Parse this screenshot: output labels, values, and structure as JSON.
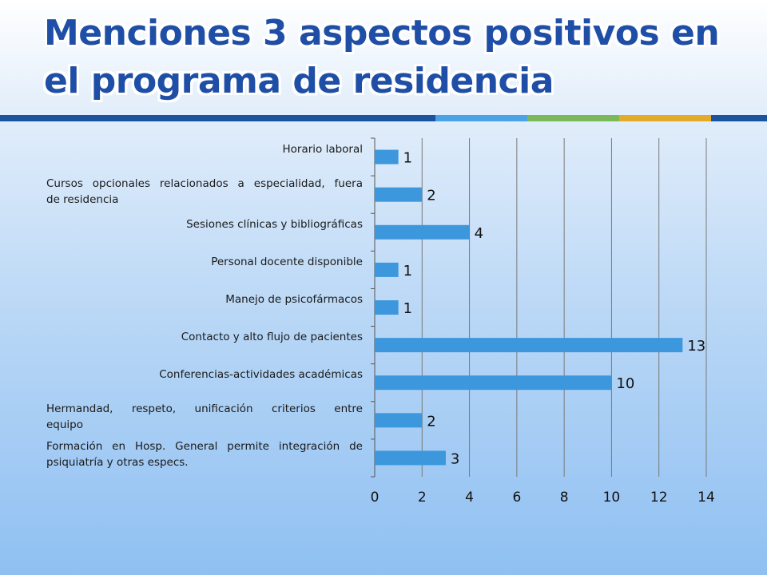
{
  "title": "Menciones 3 aspectos positivos en el programa de residencia",
  "colors": {
    "title": "#1e4ea6",
    "bar": "#3d97dd",
    "rule_segments": [
      "#1b53a0",
      "#4aa3e6",
      "#7ab85a",
      "#e4ab2a",
      "#1b53a0"
    ]
  },
  "chart_data": {
    "type": "bar",
    "orientation": "horizontal",
    "categories": [
      "Horario laboral",
      "Cursos opcionales relacionados a especialidad, fuera de residencia",
      "Sesiones clínicas y bibliográficas",
      "Personal docente disponible",
      "Manejo de psicofármacos",
      "Contacto y alto flujo de pacientes",
      "Conferencias-actividades académicas",
      "Hermandad, respeto, unificación criterios entre equipo",
      "Formación en Hosp. General permite integración de psiquiatría y otras especs."
    ],
    "category_lines": [
      [
        "Horario laboral"
      ],
      [
        "Cursos opcionales relacionados a especialidad, fuera",
        "de residencia"
      ],
      [
        "Sesiones clínicas y bibliográficas"
      ],
      [
        "Personal docente disponible"
      ],
      [
        "Manejo de psicofármacos"
      ],
      [
        "Contacto y alto flujo de pacientes"
      ],
      [
        "Conferencias-actividades académicas"
      ],
      [
        "Hermandad, respeto, unificación criterios entre",
        "equipo"
      ],
      [
        "Formación en Hosp. General permite integración de",
        "psiquiatría y otras especs."
      ]
    ],
    "values": [
      1,
      2,
      4,
      1,
      1,
      13,
      10,
      2,
      3
    ],
    "data_labels": [
      "1",
      "2",
      "4",
      "1",
      "1",
      "13",
      "10",
      "2",
      "3"
    ],
    "xlim": [
      0,
      14
    ],
    "xticks": [
      "0",
      "2",
      "4",
      "6",
      "8",
      "10",
      "12",
      "14"
    ],
    "grid": true,
    "legend": "none"
  }
}
